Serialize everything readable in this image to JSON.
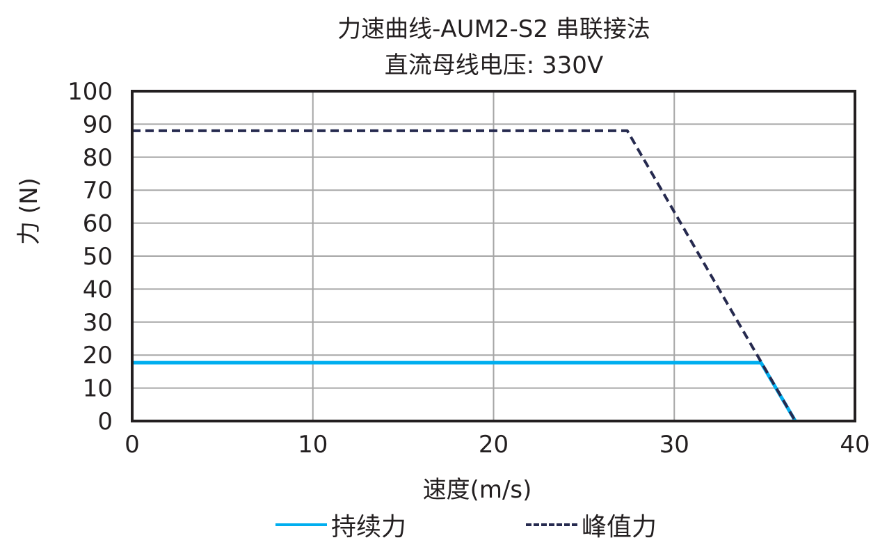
{
  "chart_data": {
    "type": "line",
    "title": "力速曲线-AUM2-S2 串联接法",
    "subtitle": "直流母线电压: 330V",
    "xlabel": "速度(m/s)",
    "ylabel": "力 (N)",
    "xlim": [
      0,
      40
    ],
    "ylim": [
      0,
      100
    ],
    "x_ticks": [
      "0",
      "10",
      "20",
      "30",
      "40"
    ],
    "y_ticks": [
      "0",
      "10",
      "20",
      "30",
      "40",
      "50",
      "60",
      "70",
      "80",
      "90",
      "100"
    ],
    "grid": true,
    "legend_position": "bottom",
    "series": [
      {
        "name": "持续力",
        "style": "solid",
        "color": "#00aeef",
        "points": [
          [
            0,
            17.7
          ],
          [
            34.8,
            17.7
          ],
          [
            36.7,
            0
          ]
        ]
      },
      {
        "name": "峰值力",
        "style": "dashed",
        "color": "#262a4f",
        "points": [
          [
            0,
            88
          ],
          [
            27.4,
            88
          ],
          [
            36.7,
            0
          ]
        ]
      }
    ]
  },
  "labels": {
    "title": "力速曲线-AUM2-S2 串联接法",
    "subtitle": "直流母线电压: 330V",
    "xlabel": "速度(m/s)",
    "ylabel": "力 (N)",
    "legend_continuous": "持续力",
    "legend_peak": "峰值力"
  }
}
